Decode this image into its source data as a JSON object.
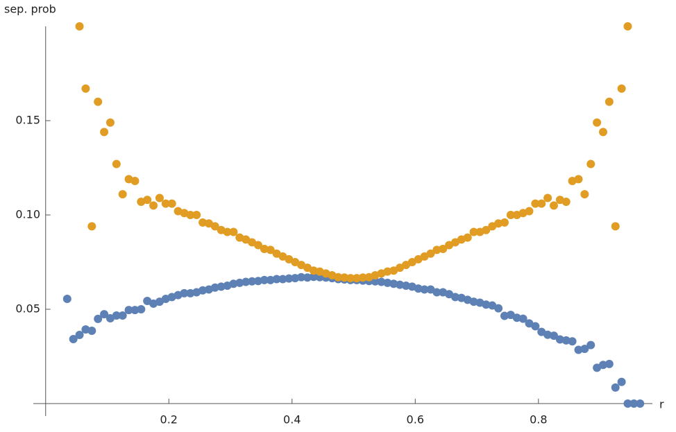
{
  "chart_data": {
    "type": "scatter",
    "y_label": "sep. prob",
    "x_label": "r",
    "x": [
      0.035,
      0.045,
      0.055,
      0.065,
      0.075,
      0.085,
      0.095,
      0.105,
      0.115,
      0.125,
      0.135,
      0.145,
      0.155,
      0.165,
      0.175,
      0.185,
      0.195,
      0.205,
      0.215,
      0.225,
      0.235,
      0.245,
      0.255,
      0.265,
      0.275,
      0.285,
      0.295,
      0.305,
      0.315,
      0.325,
      0.335,
      0.345,
      0.355,
      0.365,
      0.375,
      0.385,
      0.395,
      0.405,
      0.415,
      0.425,
      0.435,
      0.445,
      0.455,
      0.465,
      0.475,
      0.485,
      0.495,
      0.505,
      0.515,
      0.525,
      0.535,
      0.545,
      0.555,
      0.565,
      0.575,
      0.585,
      0.595,
      0.605,
      0.615,
      0.625,
      0.635,
      0.645,
      0.655,
      0.665,
      0.675,
      0.685,
      0.695,
      0.705,
      0.715,
      0.725,
      0.735,
      0.745,
      0.755,
      0.765,
      0.775,
      0.785,
      0.795,
      0.805,
      0.815,
      0.825,
      0.835,
      0.845,
      0.855,
      0.865,
      0.875,
      0.885,
      0.895,
      0.905,
      0.915,
      0.925,
      0.935,
      0.945,
      0.955,
      0.965
    ],
    "series": [
      {
        "color": "#5e81b5",
        "values": [
          0.0555,
          0.0342,
          0.0364,
          0.0393,
          0.0386,
          0.0449,
          0.0474,
          0.0452,
          0.0467,
          0.0467,
          0.0496,
          0.0496,
          0.05,
          0.0544,
          0.053,
          0.054,
          0.0555,
          0.0565,
          0.0575,
          0.0585,
          0.0585,
          0.059,
          0.06,
          0.0605,
          0.0615,
          0.062,
          0.0625,
          0.0635,
          0.064,
          0.0645,
          0.0648,
          0.065,
          0.0655,
          0.0655,
          0.066,
          0.066,
          0.0663,
          0.0665,
          0.067,
          0.0668,
          0.0672,
          0.067,
          0.0668,
          0.0665,
          0.066,
          0.0658,
          0.0655,
          0.0655,
          0.0652,
          0.065,
          0.0648,
          0.0645,
          0.064,
          0.0635,
          0.063,
          0.0625,
          0.062,
          0.061,
          0.0605,
          0.0605,
          0.059,
          0.059,
          0.058,
          0.0565,
          0.056,
          0.055,
          0.054,
          0.0535,
          0.0525,
          0.052,
          0.0505,
          0.0465,
          0.047,
          0.0455,
          0.045,
          0.0425,
          0.041,
          0.038,
          0.0365,
          0.036,
          0.034,
          0.0335,
          0.033,
          0.0285,
          0.029,
          0.031,
          0.019,
          0.0205,
          0.021,
          0.0085,
          0.0115,
          0,
          0,
          0
        ]
      },
      {
        "color": "#e19c24",
        "values": [
          null,
          null,
          0.2,
          0.167,
          0.094,
          0.16,
          0.144,
          0.149,
          0.127,
          0.111,
          0.119,
          0.118,
          0.107,
          0.108,
          0.105,
          0.109,
          0.106,
          0.106,
          0.102,
          0.101,
          0.1,
          0.1,
          0.096,
          0.0955,
          0.094,
          0.092,
          0.091,
          0.091,
          0.088,
          0.087,
          0.0855,
          0.084,
          0.082,
          0.0815,
          0.0795,
          0.078,
          0.0765,
          0.075,
          0.0735,
          0.072,
          0.0705,
          0.07,
          0.069,
          0.068,
          0.067,
          0.0668,
          0.0665,
          0.0665,
          0.0668,
          0.067,
          0.068,
          0.069,
          0.07,
          0.0705,
          0.072,
          0.0735,
          0.075,
          0.0765,
          0.078,
          0.0795,
          0.0815,
          0.082,
          0.084,
          0.0855,
          0.087,
          0.088,
          0.091,
          0.091,
          0.092,
          0.094,
          0.0955,
          0.096,
          0.1,
          0.1,
          0.101,
          0.102,
          0.106,
          0.106,
          0.109,
          0.105,
          0.108,
          0.107,
          0.118,
          0.119,
          0.111,
          0.127,
          0.149,
          0.144,
          0.16,
          0.094,
          0.167,
          0.2,
          null,
          null
        ]
      }
    ],
    "xlim": [
      -0.02,
      0.985
    ],
    "ylim": [
      0,
      0.2
    ],
    "xticks": [
      0.2,
      0.4,
      0.6,
      0.8
    ],
    "yticks": [
      0.05,
      {
        "value": 0.1,
        "label": "0.10"
      },
      0.15
    ]
  }
}
